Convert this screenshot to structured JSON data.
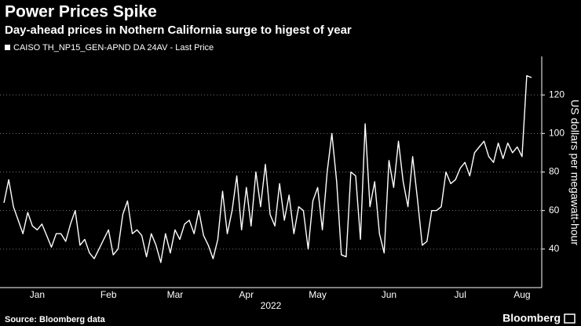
{
  "chart_data": {
    "type": "line",
    "title": "Power Prices Spike",
    "subtitle": "Day-ahead prices in Nothern California surge to higest of year",
    "x_label": "2022",
    "y_label": "US dollars per megawatt-hour",
    "source": "Source: Bloomberg data",
    "logo": "Bloomberg",
    "categories": [
      null,
      null,
      null,
      null,
      null,
      null,
      null,
      "Jan",
      null,
      null,
      null,
      null,
      null,
      null,
      null,
      null,
      null,
      null,
      null,
      null,
      null,
      null,
      "Feb",
      null,
      null,
      null,
      null,
      null,
      null,
      null,
      null,
      null,
      null,
      null,
      null,
      null,
      "Mar",
      null,
      null,
      null,
      null,
      null,
      null,
      null,
      null,
      null,
      null,
      null,
      null,
      null,
      null,
      "Apr",
      null,
      null,
      null,
      null,
      null,
      null,
      null,
      null,
      null,
      null,
      null,
      null,
      null,
      null,
      "May",
      null,
      null,
      null,
      null,
      null,
      null,
      null,
      null,
      null,
      null,
      null,
      null,
      null,
      null,
      "Jun",
      null,
      null,
      null,
      null,
      null,
      null,
      null,
      null,
      null,
      null,
      null,
      null,
      null,
      null,
      "Jul",
      null,
      null,
      null,
      null,
      null,
      null,
      null,
      null,
      null,
      null,
      null,
      null,
      "Aug",
      null,
      null
    ],
    "series": [
      {
        "name": "CAISO TH_NP15_GEN-APND DA 24AV - Last Price",
        "color": "#ffffff",
        "values": [
          64,
          76,
          62,
          55,
          48,
          59,
          52,
          50,
          53,
          47,
          41,
          48,
          48,
          44,
          53,
          60,
          42,
          45,
          38,
          35,
          40,
          45,
          50,
          37,
          40,
          58,
          65,
          48,
          50,
          47,
          36,
          48,
          42,
          33,
          48,
          38,
          50,
          45,
          53,
          55,
          48,
          60,
          47,
          42,
          35,
          45,
          70,
          48,
          60,
          78,
          50,
          72,
          52,
          80,
          62,
          84,
          58,
          52,
          74,
          55,
          68,
          48,
          62,
          60,
          40,
          65,
          72,
          50,
          80,
          100,
          75,
          37,
          36,
          80,
          78,
          45,
          105,
          62,
          75,
          48,
          38,
          86,
          72,
          96,
          75,
          62,
          88,
          66,
          42,
          44,
          60,
          60,
          62,
          80,
          74,
          76,
          82,
          85,
          78,
          90,
          93,
          96,
          88,
          85,
          95,
          87,
          95,
          90,
          93,
          88,
          130,
          129
        ]
      }
    ],
    "ylim": [
      20,
      140
    ],
    "yticks": [
      40,
      60,
      80,
      100,
      120
    ],
    "grid": true
  }
}
